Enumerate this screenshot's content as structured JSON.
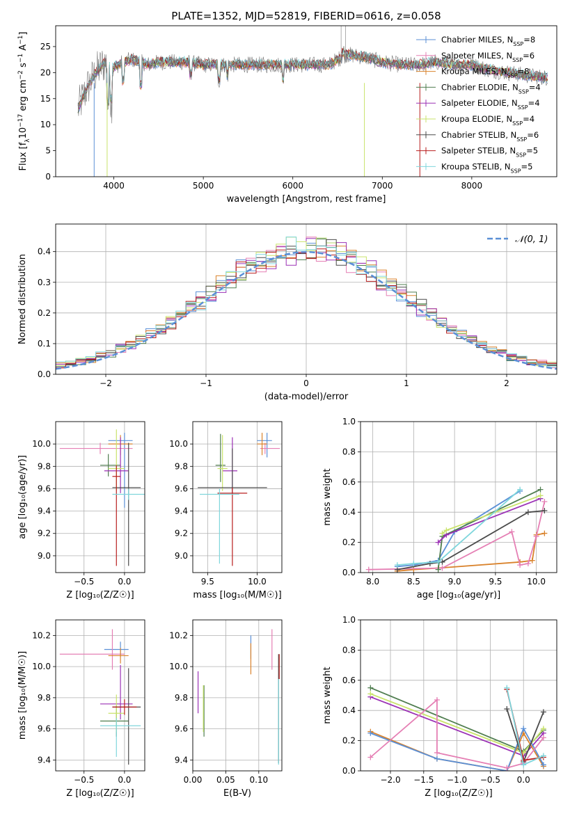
{
  "figure_title": "PLATE=1352, MJD=52819, FIBERID=0616, z=0.058",
  "colors": {
    "Chabrier MILES": "#5a8fd6",
    "Salpeter MILES": "#e57fb4",
    "Kroupa MILES": "#d9822b",
    "Chabrier ELODIE": "#4f7d4f",
    "Salpeter ELODIE": "#9b30b5",
    "Kroupa ELODIE": "#c9e36b",
    "Chabrier STELIB": "#4a4a4a",
    "Salpeter STELIB": "#b81e1e",
    "Kroupa STELIB": "#7fd6dc",
    "data": "#777777",
    "normal": "#5a8fd6"
  },
  "chart_data": [
    {
      "id": "spectrum",
      "type": "line",
      "title": "PLATE=1352, MJD=52819, FIBERID=0616, z=0.058",
      "xlabel": "wavelength [Angstrom, rest frame]",
      "ylabel_parts": [
        "Flux [f",
        "λ",
        "10",
        "−17",
        " erg cm",
        "−2",
        " s",
        "−1",
        " A",
        "−1",
        "]"
      ],
      "xlim": [
        3350,
        8950
      ],
      "ylim": [
        0,
        29
      ],
      "xticks": [
        4000,
        5000,
        6000,
        7000,
        8000
      ],
      "yticks": [
        0,
        5,
        10,
        15,
        20,
        25
      ],
      "grid": false,
      "legend": "upper right",
      "series": [
        {
          "name": "Chabrier MILES",
          "suffix": "=8"
        },
        {
          "name": "Salpeter MILES",
          "suffix": "=6"
        },
        {
          "name": "Kroupa MILES",
          "suffix": "=8"
        },
        {
          "name": "Chabrier ELODIE",
          "suffix": "=4"
        },
        {
          "name": "Salpeter ELODIE",
          "suffix": "=4"
        },
        {
          "name": "Kroupa ELODIE",
          "suffix": "=4"
        },
        {
          "name": "Chabrier STELIB",
          "suffix": "=6"
        },
        {
          "name": "Salpeter STELIB",
          "suffix": "=5"
        },
        {
          "name": "Kroupa STELIB",
          "suffix": "=5"
        }
      ],
      "continuum": [
        [
          3600,
          13
        ],
        [
          3700,
          17
        ],
        [
          3800,
          20
        ],
        [
          3900,
          22
        ],
        [
          4000,
          21
        ],
        [
          4100,
          22
        ],
        [
          4200,
          22.5
        ],
        [
          4300,
          22
        ],
        [
          4400,
          21.5
        ],
        [
          4500,
          22
        ],
        [
          4600,
          22
        ],
        [
          4800,
          22
        ],
        [
          5000,
          21.5
        ],
        [
          5200,
          21.5
        ],
        [
          5400,
          21.5
        ],
        [
          5600,
          21.5
        ],
        [
          5800,
          21.5
        ],
        [
          6000,
          21.5
        ],
        [
          6200,
          21.5
        ],
        [
          6400,
          21.5
        ],
        [
          6600,
          23.5
        ],
        [
          6800,
          23
        ],
        [
          7000,
          22
        ],
        [
          7200,
          21.5
        ],
        [
          7400,
          21.5
        ],
        [
          7600,
          22
        ],
        [
          7800,
          21.5
        ],
        [
          8000,
          21.5
        ],
        [
          8200,
          20.5
        ],
        [
          8400,
          20
        ],
        [
          8600,
          19.5
        ],
        [
          8850,
          19
        ]
      ]
    },
    {
      "id": "residuals",
      "type": "histogram",
      "xlabel": "(data-model)/error",
      "ylabel": "Normed distribution",
      "xlim": [
        -2.5,
        2.5
      ],
      "ylim": [
        0,
        0.49
      ],
      "xticks": [
        -2,
        -1,
        0,
        1,
        2
      ],
      "yticks": [
        0.0,
        0.1,
        0.2,
        0.3,
        0.4
      ],
      "grid": true,
      "legend": "upper right",
      "legend_label": "𝒩(0, 1)",
      "bin_edges_step": 0.1,
      "bin_start": -2.5
    },
    {
      "id": "age_vs_Z",
      "type": "scatter",
      "xlabel": "Z [log₁₀(Z/Z☉)]",
      "ylabel": "age  [log₁₀(age/yr)]",
      "xlim": [
        -0.85,
        0.25
      ],
      "ylim": [
        8.85,
        10.2
      ],
      "xticks": [
        -0.5,
        0.0
      ],
      "yticks": [
        9.0,
        9.2,
        9.4,
        9.6,
        9.8,
        10.0
      ],
      "grid": true,
      "points": [
        {
          "series": "Chabrier MILES",
          "x": 0.0,
          "y": 10.03,
          "xerr": [
            0.2,
            0.1
          ],
          "yerr": [
            0.6,
            0.07
          ]
        },
        {
          "series": "Salpeter MILES",
          "x": -0.3,
          "y": 9.96,
          "xerr": [
            0.5,
            0.4
          ],
          "yerr": [
            0.05,
            0.05
          ]
        },
        {
          "series": "Kroupa MILES",
          "x": -0.05,
          "y": 10.0,
          "xerr": [
            0.15,
            0.15
          ],
          "yerr": [
            0.1,
            0.08
          ]
        },
        {
          "series": "Chabrier ELODIE",
          "x": -0.2,
          "y": 9.81,
          "xerr": [
            0.1,
            0.15
          ],
          "yerr": [
            0.1,
            0.1
          ]
        },
        {
          "series": "Salpeter ELODIE",
          "x": -0.05,
          "y": 9.76,
          "xerr": [
            0.2,
            0.1
          ],
          "yerr": [
            0.2,
            0.3
          ]
        },
        {
          "series": "Kroupa ELODIE",
          "x": -0.1,
          "y": 9.78,
          "xerr": [
            0.1,
            0.1
          ],
          "yerr": [
            0.2,
            0.35
          ]
        },
        {
          "series": "Chabrier STELIB",
          "x": 0.05,
          "y": 9.61,
          "xerr": [
            0.2,
            0.15
          ],
          "yerr": [
            0.7,
            0.4
          ]
        },
        {
          "series": "Salpeter STELIB",
          "x": -0.1,
          "y": 9.71,
          "xerr": [
            0.05,
            0.05
          ],
          "yerr": [
            0.8,
            0.1
          ]
        },
        {
          "series": "Kroupa STELIB",
          "x": 0.05,
          "y": 9.55,
          "xerr": [
            0.2,
            0.2
          ],
          "yerr": [
            0.05,
            0.05
          ]
        }
      ]
    },
    {
      "id": "age_vs_mass",
      "type": "scatter",
      "xlabel": "mass [log₁₀(M/M☉)]",
      "ylabel": "",
      "xlim": [
        9.35,
        10.25
      ],
      "ylim": [
        8.85,
        10.2
      ],
      "xticks": [
        9.5,
        10.0
      ],
      "yticks": [
        9.0,
        9.2,
        9.4,
        9.6,
        9.8,
        10.0
      ],
      "grid": true,
      "points": [
        {
          "series": "Chabrier MILES",
          "x": 10.1,
          "y": 10.03,
          "xerr": [
            0.1,
            0.05
          ],
          "yerr": [
            0.15,
            0.07
          ]
        },
        {
          "series": "Salpeter MILES",
          "x": 10.08,
          "y": 9.96,
          "xerr": [
            0.05,
            0.15
          ],
          "yerr": [
            0.05,
            0.05
          ]
        },
        {
          "series": "Kroupa MILES",
          "x": 10.05,
          "y": 10.0,
          "xerr": [
            0.05,
            0.05
          ],
          "yerr": [
            0.1,
            0.1
          ]
        },
        {
          "series": "Chabrier ELODIE",
          "x": 9.63,
          "y": 9.81,
          "xerr": [
            0.05,
            0.05
          ],
          "yerr": [
            0.15,
            0.28
          ]
        },
        {
          "series": "Salpeter ELODIE",
          "x": 9.75,
          "y": 9.76,
          "xerr": [
            0.1,
            0.05
          ],
          "yerr": [
            0.2,
            0.3
          ]
        },
        {
          "series": "Kroupa ELODIE",
          "x": 9.65,
          "y": 9.78,
          "xerr": [
            0.05,
            0.05
          ],
          "yerr": [
            0.2,
            0.3
          ]
        },
        {
          "series": "Chabrier STELIB",
          "x": 9.75,
          "y": 9.61,
          "xerr": [
            0.35,
            0.35
          ],
          "yerr": [
            0.05,
            0.35
          ]
        },
        {
          "series": "Salpeter STELIB",
          "x": 9.75,
          "y": 9.56,
          "xerr": [
            0.15,
            0.15
          ],
          "yerr": [
            0.65,
            0.05
          ]
        },
        {
          "series": "Kroupa STELIB",
          "x": 9.62,
          "y": 9.55,
          "xerr": [
            0.2,
            0.2
          ],
          "yerr": [
            0.62,
            0.05
          ]
        }
      ]
    },
    {
      "id": "mass_weight_vs_age",
      "type": "line",
      "xlabel": "age  [log₁₀(age/yr)]",
      "ylabel": "mass weight",
      "xlim": [
        7.85,
        10.25
      ],
      "ylim": [
        0,
        1
      ],
      "xticks": [
        8.0,
        8.5,
        9.0,
        9.5,
        10.0
      ],
      "yticks": [
        0.0,
        0.2,
        0.4,
        0.6,
        0.8,
        1.0
      ],
      "grid": true,
      "series": [
        {
          "name": "Chabrier MILES",
          "x": [
            8.3,
            8.5,
            8.8,
            9.0,
            9.8
          ],
          "y": [
            0.04,
            0.05,
            0.08,
            0.27,
            0.54
          ]
        },
        {
          "name": "Kroupa MILES",
          "x": [
            8.3,
            8.5,
            8.8,
            9.8,
            9.95,
            10.0,
            10.1
          ],
          "y": [
            0.01,
            0.02,
            0.03,
            0.07,
            0.08,
            0.25,
            0.26
          ]
        },
        {
          "name": "Salpeter MILES",
          "x": [
            7.95,
            8.85,
            9.7,
            9.8,
            9.9,
            10.0,
            10.1
          ],
          "y": [
            0.02,
            0.03,
            0.27,
            0.05,
            0.06,
            0.24,
            0.47
          ]
        },
        {
          "name": "Chabrier ELODIE",
          "x": [
            8.8,
            8.85,
            10.05
          ],
          "y": [
            0.02,
            0.24,
            0.55
          ]
        },
        {
          "name": "Salpeter ELODIE",
          "x": [
            8.8,
            8.9,
            10.05
          ],
          "y": [
            0.2,
            0.25,
            0.49
          ]
        },
        {
          "name": "Kroupa ELODIE",
          "x": [
            8.85,
            8.9,
            10.05
          ],
          "y": [
            0.26,
            0.28,
            0.51
          ]
        },
        {
          "name": "Chabrier STELIB",
          "x": [
            8.3,
            8.7,
            8.85,
            9.9,
            10.1
          ],
          "y": [
            0.02,
            0.06,
            0.07,
            0.4,
            0.41
          ]
        },
        {
          "name": "Kroupa STELIB",
          "x": [
            8.3,
            8.5,
            8.8,
            9.8
          ],
          "y": [
            0.05,
            0.06,
            0.07,
            0.55
          ]
        }
      ]
    },
    {
      "id": "mass_vs_Z",
      "type": "scatter",
      "xlabel": "Z [log₁₀(Z/Z☉)]",
      "ylabel": "mass [log₁₀(M/M☉)]",
      "xlim": [
        -0.85,
        0.25
      ],
      "ylim": [
        9.33,
        10.3
      ],
      "xticks": [
        -0.5,
        0.0
      ],
      "yticks": [
        9.4,
        9.6,
        9.8,
        10.0,
        10.2
      ],
      "grid": true,
      "points": [
        {
          "series": "Chabrier MILES",
          "x": -0.05,
          "y": 10.11,
          "xerr": [
            0.2,
            0.1
          ],
          "yerr": [
            0.05,
            0.05
          ]
        },
        {
          "series": "Salpeter MILES",
          "x": -0.15,
          "y": 10.08,
          "xerr": [
            0.65,
            0.15
          ],
          "yerr": [
            0.1,
            0.16
          ]
        },
        {
          "series": "Kroupa MILES",
          "x": -0.05,
          "y": 10.07,
          "xerr": [
            0.15,
            0.1
          ],
          "yerr": [
            0.05,
            0.05
          ]
        },
        {
          "series": "Chabrier ELODIE",
          "x": -0.1,
          "y": 9.65,
          "xerr": [
            0.2,
            0.15
          ],
          "yerr": [
            0.1,
            0.1
          ]
        },
        {
          "series": "Salpeter ELODIE",
          "x": -0.05,
          "y": 9.76,
          "xerr": [
            0.25,
            0.15
          ],
          "yerr": [
            0.1,
            0.25
          ]
        },
        {
          "series": "Kroupa ELODIE",
          "x": -0.1,
          "y": 9.7,
          "xerr": [
            0.1,
            0.1
          ],
          "yerr": [
            0.12,
            0.12
          ]
        },
        {
          "series": "Chabrier STELIB",
          "x": 0.05,
          "y": 9.74,
          "xerr": [
            0.2,
            0.15
          ],
          "yerr": [
            0.37,
            0.25
          ]
        },
        {
          "series": "Salpeter STELIB",
          "x": 0.0,
          "y": 9.74,
          "xerr": [
            0.15,
            0.15
          ],
          "yerr": [
            0.05,
            0.05
          ]
        },
        {
          "series": "Kroupa STELIB",
          "x": -0.1,
          "y": 9.62,
          "xerr": [
            0.2,
            0.3
          ],
          "yerr": [
            0.2,
            0.05
          ]
        }
      ]
    },
    {
      "id": "mass_vs_EBV",
      "type": "scatter",
      "xlabel": "E(B-V)",
      "ylabel": "",
      "xlim": [
        0.0,
        0.135
      ],
      "ylim": [
        9.33,
        10.3
      ],
      "xticks": [
        0.0,
        0.05,
        0.1
      ],
      "xtick_labels": [
        "0.00",
        "0.05",
        "0.10"
      ],
      "yticks": [
        9.4,
        9.6,
        9.8,
        10.0,
        10.2
      ],
      "grid": true,
      "points": [
        {
          "series": "Chabrier MILES",
          "x": 0.088,
          "y": 10.1,
          "xerr": [
            0,
            0
          ],
          "yerr": [
            0.05,
            0.1
          ]
        },
        {
          "series": "Salpeter MILES",
          "x": 0.12,
          "y": 10.1,
          "xerr": [
            0,
            0
          ],
          "yerr": [
            0.12,
            0.14
          ]
        },
        {
          "series": "Kroupa MILES",
          "x": 0.088,
          "y": 10.05,
          "xerr": [
            0,
            0
          ],
          "yerr": [
            0.1,
            0.1
          ]
        },
        {
          "series": "Chabrier ELODIE",
          "x": 0.017,
          "y": 9.65,
          "xerr": [
            0,
            0
          ],
          "yerr": [
            0.1,
            0.23
          ]
        },
        {
          "series": "Salpeter ELODIE",
          "x": 0.008,
          "y": 9.85,
          "xerr": [
            0,
            0
          ],
          "yerr": [
            0.15,
            0.12
          ]
        },
        {
          "series": "Kroupa ELODIE",
          "x": 0.016,
          "y": 9.7,
          "xerr": [
            0,
            0
          ],
          "yerr": [
            0.12,
            0.18
          ]
        },
        {
          "series": "Chabrier STELIB",
          "x": 0.13,
          "y": 9.7,
          "xerr": [
            0,
            0
          ],
          "yerr": [
            0.32,
            0.38
          ]
        },
        {
          "series": "Salpeter STELIB",
          "x": 0.131,
          "y": 10.0,
          "xerr": [
            0,
            0
          ],
          "yerr": [
            0.08,
            0.08
          ]
        },
        {
          "series": "Kroupa STELIB",
          "x": 0.13,
          "y": 9.62,
          "xerr": [
            0,
            0
          ],
          "yerr": [
            0.25,
            0.3
          ]
        }
      ]
    },
    {
      "id": "mass_weight_vs_Z",
      "type": "line",
      "xlabel": "Z [log₁₀(Z/Z☉)]",
      "ylabel": "mass weight",
      "xlim": [
        -2.45,
        0.5
      ],
      "ylim": [
        0,
        1
      ],
      "xticks": [
        -2.0,
        -1.5,
        -1.0,
        -0.5,
        0.0
      ],
      "yticks": [
        0.0,
        0.2,
        0.4,
        0.6,
        0.8,
        1.0
      ],
      "grid": true,
      "series": [
        {
          "name": "Chabrier ELODIE",
          "x": [
            -2.3,
            0.0,
            0.3
          ],
          "y": [
            0.55,
            0.13,
            0.27
          ]
        },
        {
          "name": "Salpeter ELODIE",
          "x": [
            -2.3,
            0.0,
            0.3
          ],
          "y": [
            0.49,
            0.1,
            0.25
          ]
        },
        {
          "name": "Kroupa ELODIE",
          "x": [
            -2.3,
            0.0,
            0.3
          ],
          "y": [
            0.51,
            0.12,
            0.28
          ]
        },
        {
          "name": "Kroupa MILES",
          "x": [
            -2.3,
            -1.3,
            -0.25,
            0.0,
            0.3
          ],
          "y": [
            0.26,
            0.08,
            0.0,
            0.25,
            0.03
          ]
        },
        {
          "name": "Chabrier MILES",
          "x": [
            -2.3,
            -1.3,
            -0.25,
            0.0,
            0.3
          ],
          "y": [
            0.25,
            0.08,
            0.0,
            0.28,
            0.04
          ]
        },
        {
          "name": "Salpeter MILES",
          "x": [
            -2.3,
            -1.3,
            -1.3,
            -0.25,
            0.0,
            0.3
          ],
          "y": [
            0.09,
            0.47,
            0.12,
            0.02,
            0.05,
            0.22
          ]
        },
        {
          "name": "Chabrier STELIB",
          "x": [
            -0.25,
            0.0,
            0.3
          ],
          "y": [
            0.41,
            0.06,
            0.39
          ]
        },
        {
          "name": "Salpeter STELIB",
          "x": [
            -0.25,
            0.0,
            0.3
          ],
          "y": [
            0.54,
            0.07,
            0.09
          ]
        },
        {
          "name": "Kroupa STELIB",
          "x": [
            -0.25,
            0.0,
            0.3
          ],
          "y": [
            0.55,
            0.04,
            0.1
          ]
        }
      ]
    }
  ]
}
